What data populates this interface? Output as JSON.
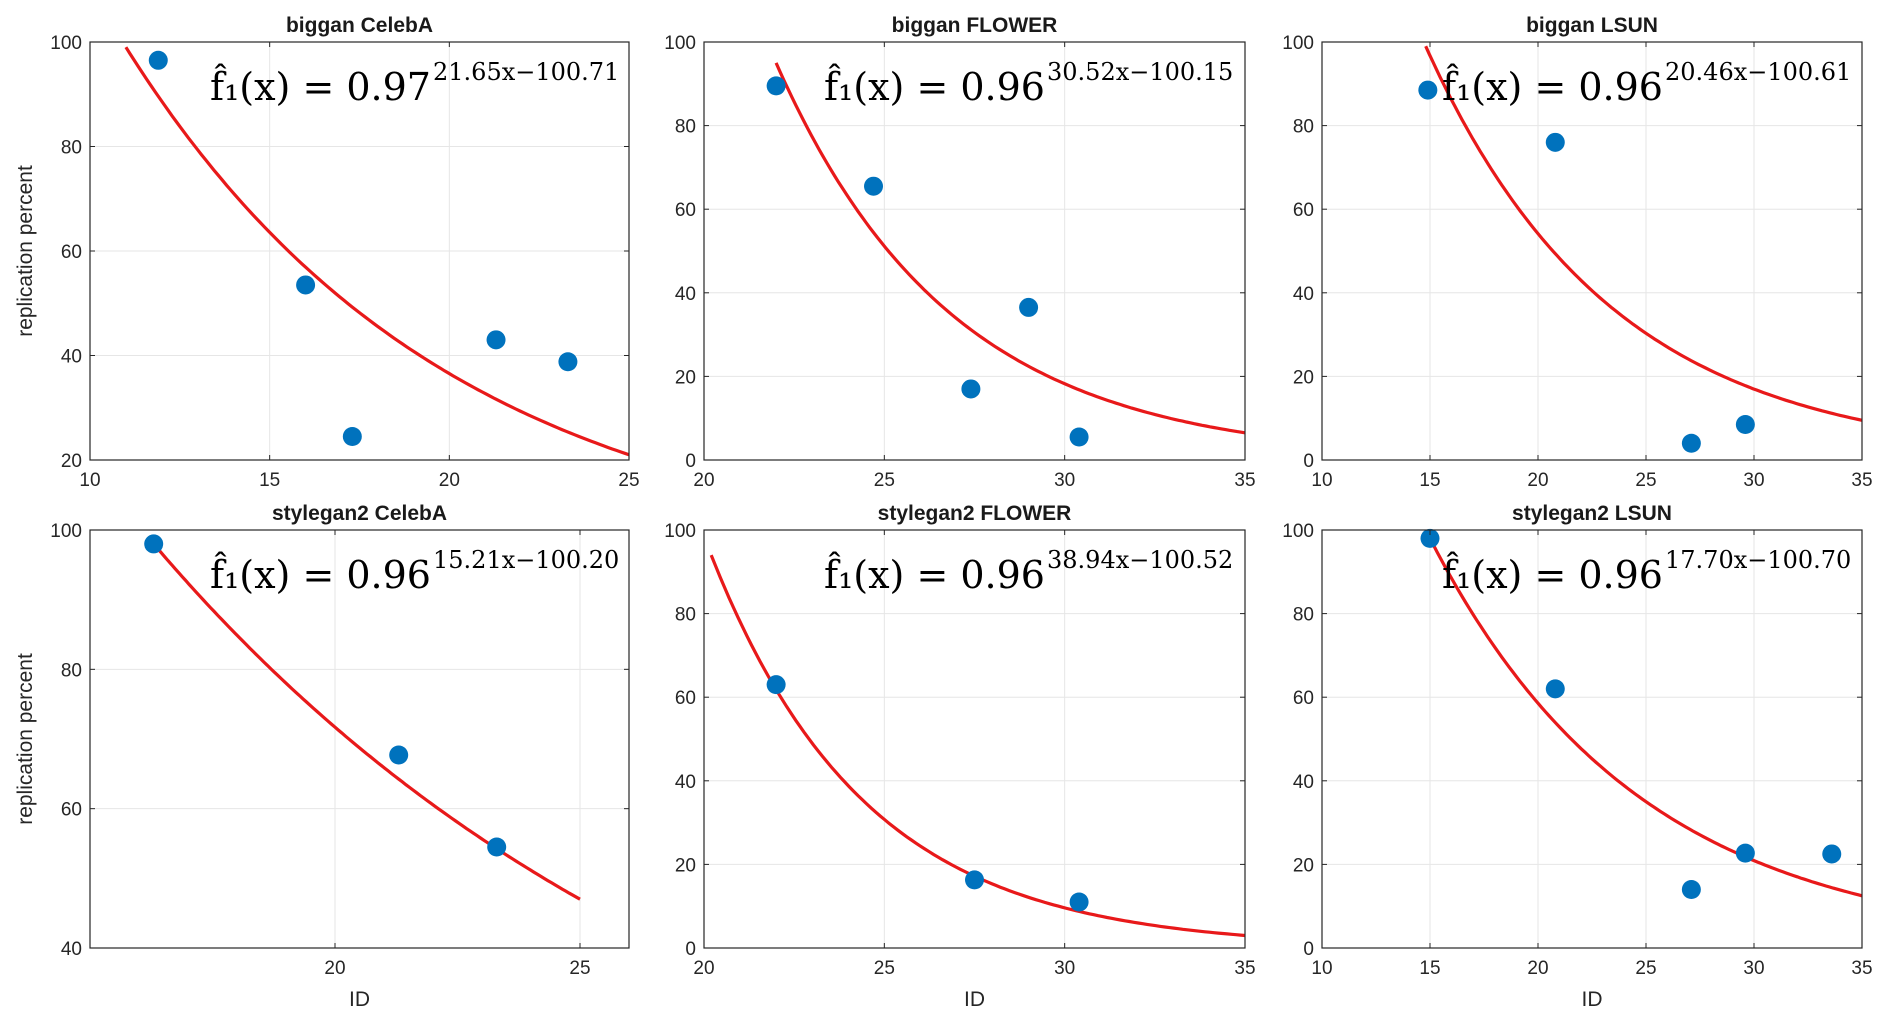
{
  "chart_data": [
    {
      "type": "scatter",
      "title": "biggan CelebA",
      "xlabel": "",
      "ylabel": "replication percent",
      "xlim": [
        10,
        25
      ],
      "ylim": [
        20,
        100
      ],
      "xticks": [
        10,
        15,
        20,
        25
      ],
      "yticks": [
        20,
        40,
        60,
        80,
        100
      ],
      "grid": true,
      "points": {
        "x": [
          11.9,
          16.0,
          17.3,
          21.3,
          23.3
        ],
        "y": [
          96.5,
          53.5,
          24.5,
          43.0,
          38.8
        ]
      },
      "fit": {
        "base": 0.97,
        "a": 21.65,
        "b": 100.71,
        "x_start": 11.0,
        "x_end": 25.0
      },
      "formula": {
        "lhs": "f̂₁(x) = 0.97",
        "exponent": "21.65x−100.71"
      }
    },
    {
      "type": "scatter",
      "title": "biggan FLOWER",
      "xlabel": "",
      "ylabel": "",
      "xlim": [
        20,
        35
      ],
      "ylim": [
        0,
        100
      ],
      "xticks": [
        20,
        25,
        30,
        35
      ],
      "yticks": [
        0,
        20,
        40,
        60,
        80,
        100
      ],
      "grid": true,
      "points": {
        "x": [
          22.0,
          24.7,
          27.4,
          29.0,
          30.4
        ],
        "y": [
          89.5,
          65.5,
          17.0,
          36.5,
          5.5
        ]
      },
      "fit": {
        "base": 0.96,
        "a": 30.52,
        "b": 100.15,
        "x_start": 22.0,
        "x_end": 35.0
      },
      "formula": {
        "lhs": "f̂₁(x) = 0.96",
        "exponent": "30.52x−100.15"
      }
    },
    {
      "type": "scatter",
      "title": "biggan LSUN",
      "xlabel": "",
      "ylabel": "",
      "xlim": [
        10,
        35
      ],
      "ylim": [
        0,
        100
      ],
      "xticks": [
        10,
        15,
        20,
        25,
        30,
        35
      ],
      "yticks": [
        0,
        20,
        40,
        60,
        80,
        100
      ],
      "grid": true,
      "points": {
        "x": [
          14.9,
          20.8,
          27.1,
          29.6
        ],
        "y": [
          88.5,
          76.0,
          4.0,
          8.5
        ]
      },
      "fit": {
        "base": 0.96,
        "a": 20.46,
        "b": 100.61,
        "x_start": 14.8,
        "x_end": 35.0
      },
      "formula": {
        "lhs": "f̂₁(x) = 0.96",
        "exponent": "20.46x−100.61"
      }
    },
    {
      "type": "scatter",
      "title": "stylegan2 CelebA",
      "xlabel": "ID",
      "ylabel": "replication percent",
      "xlim": [
        15,
        26
      ],
      "ylim": [
        40,
        100
      ],
      "xticks": [
        20,
        25
      ],
      "yticks": [
        40,
        60,
        80,
        100
      ],
      "grid": true,
      "points": {
        "x": [
          16.3,
          21.3,
          23.3
        ],
        "y": [
          98.0,
          67.7,
          54.5
        ]
      },
      "fit": {
        "base": 0.96,
        "a": 15.21,
        "b": 100.2,
        "x_start": 16.3,
        "x_end": 25.0
      },
      "formula": {
        "lhs": "f̂₁(x) = 0.96",
        "exponent": "15.21x−100.20"
      }
    },
    {
      "type": "scatter",
      "title": "stylegan2 FLOWER",
      "xlabel": "ID",
      "ylabel": "",
      "xlim": [
        20,
        35
      ],
      "ylim": [
        0,
        100
      ],
      "xticks": [
        20,
        25,
        30,
        35
      ],
      "yticks": [
        0,
        20,
        40,
        60,
        80,
        100
      ],
      "grid": true,
      "points": {
        "x": [
          22.0,
          27.5,
          30.4
        ],
        "y": [
          63.0,
          16.3,
          11.0
        ]
      },
      "fit": {
        "base": 0.96,
        "a": 38.94,
        "b": 100.52,
        "x_start": 20.2,
        "x_end": 35.0
      },
      "formula": {
        "lhs": "f̂₁(x) = 0.96",
        "exponent": "38.94x−100.52"
      }
    },
    {
      "type": "scatter",
      "title": "stylegan2 LSUN",
      "xlabel": "ID",
      "ylabel": "",
      "xlim": [
        10,
        35
      ],
      "ylim": [
        0,
        100
      ],
      "xticks": [
        10,
        15,
        20,
        25,
        30,
        35
      ],
      "yticks": [
        0,
        20,
        40,
        60,
        80,
        100
      ],
      "grid": true,
      "points": {
        "x": [
          15.0,
          20.8,
          27.1,
          29.6,
          33.6
        ],
        "y": [
          98.0,
          62.0,
          14.0,
          22.7,
          22.5
        ]
      },
      "fit": {
        "base": 0.96,
        "a": 17.7,
        "b": 100.7,
        "x_start": 15.0,
        "x_end": 35.0
      },
      "formula": {
        "lhs": "f̂₁(x) = 0.96",
        "exponent": "17.70x−100.70"
      }
    }
  ],
  "colors": {
    "points": "#0072BD",
    "fit": "#E8191A",
    "grid": "#e6e6e6",
    "axis": "#262626"
  }
}
